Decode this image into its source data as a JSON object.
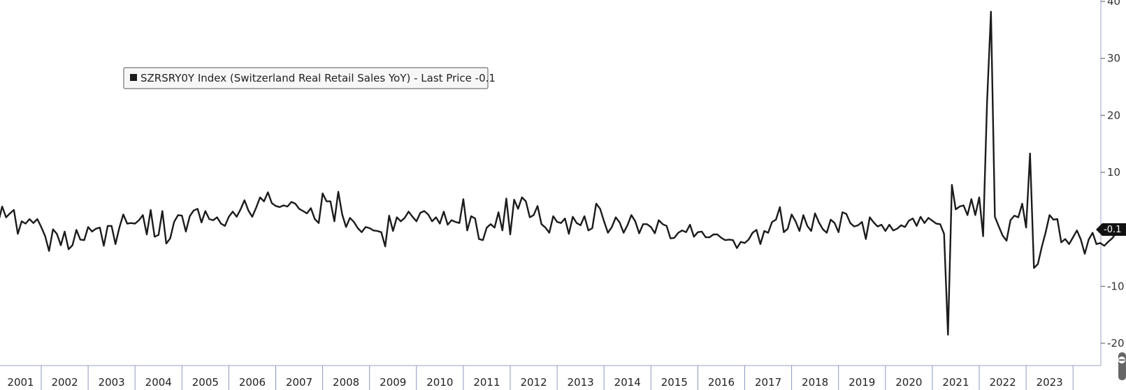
{
  "legend": {
    "text": "SZRSRY0Y Index (Switzerland Real Retail Sales YoY) - Last Price -0.1"
  },
  "last_price_label": "-0.1",
  "colors": {
    "series": "#1b1b1b",
    "axis": "#9aa0c0",
    "tag": "#111111"
  },
  "chart_data": {
    "type": "line",
    "title": "",
    "xlabel": "",
    "ylabel": "",
    "y_axis_position": "right",
    "ylim": [
      -23,
      40
    ],
    "y_ticks": [
      -20,
      -10,
      10,
      20,
      30,
      40
    ],
    "x_tick_labels": [
      "2001",
      "2002",
      "2003",
      "2004",
      "2005",
      "2006",
      "2007",
      "2008",
      "2009",
      "2010",
      "2011",
      "2012",
      "2013",
      "2014",
      "2015",
      "2016",
      "2017",
      "2018",
      "2019",
      "2020",
      "2021",
      "2022",
      "2023"
    ],
    "legend_position": "top-left",
    "grid": false,
    "series": [
      {
        "name": "SZRSRY0Y Index (Switzerland Real Retail Sales YoY)",
        "start": "2000-10",
        "frequency": "monthly",
        "values": [
          3.4,
          3.2,
          3.8,
          0.5,
          1.2,
          4.0,
          2.1,
          2.8,
          3.4,
          -0.8,
          1.4,
          1.0,
          1.8,
          1.1,
          1.8,
          0.4,
          -1.2,
          -3.8,
          0.0,
          -0.8,
          -2.8,
          -0.4,
          -3.5,
          -2.8,
          -0.1,
          -1.8,
          -1.9,
          0.4,
          -0.4,
          0.1,
          0.3,
          -2.9,
          0.6,
          0.6,
          -2.6,
          0.3,
          2.6,
          1.0,
          1.1,
          1.0,
          1.6,
          2.5,
          -0.9,
          3.4,
          -1.3,
          -1.0,
          3.2,
          -2.5,
          -1.6,
          1.3,
          2.5,
          2.4,
          -0.4,
          2.3,
          3.3,
          3.6,
          1.2,
          3.2,
          1.8,
          1.6,
          2.1,
          1.0,
          0.6,
          2.2,
          3.1,
          2.2,
          3.5,
          5.1,
          3.3,
          2.2,
          3.8,
          5.6,
          4.9,
          6.5,
          4.6,
          4.1,
          3.9,
          4.2,
          4.0,
          4.8,
          4.5,
          3.6,
          3.2,
          2.8,
          3.7,
          1.8,
          1.1,
          6.3,
          4.9,
          4.9,
          1.4,
          6.6,
          2.6,
          0.4,
          2.0,
          1.3,
          0.2,
          -0.5,
          0.4,
          0.2,
          -0.2,
          -0.3,
          -0.5,
          -3.0,
          2.4,
          -0.3,
          2.1,
          1.4,
          2.0,
          3.1,
          2.2,
          1.4,
          2.9,
          3.2,
          2.6,
          1.4,
          2.1,
          1.0,
          3.1,
          0.8,
          1.6,
          1.3,
          1.1,
          5.3,
          -0.2,
          2.3,
          1.9,
          -1.7,
          -1.9,
          0.3,
          0.9,
          0.3,
          3.0,
          -0.2,
          5.4,
          -0.9,
          5.2,
          3.6,
          5.6,
          4.9,
          2.1,
          2.5,
          4.1,
          0.9,
          0.3,
          -0.6,
          2.3,
          1.3,
          1.1,
          1.9,
          -0.8,
          2.2,
          1.1,
          0.7,
          2.3,
          -0.2,
          0.2,
          4.5,
          3.6,
          1.4,
          -0.6,
          0.4,
          2.1,
          1.2,
          -0.6,
          0.7,
          2.5,
          1.4,
          -0.7,
          0.9,
          0.9,
          0.4,
          -0.7,
          1.6,
          0.9,
          0.6,
          -1.6,
          -1.5,
          -0.6,
          -0.2,
          -0.5,
          0.8,
          -1.3,
          -0.5,
          -0.4,
          -1.4,
          -1.4,
          -0.9,
          -0.9,
          -1.5,
          -1.9,
          -1.8,
          -1.9,
          -3.3,
          -2.2,
          -2.4,
          -1.8,
          -0.6,
          -0.1,
          -2.6,
          -0.3,
          -0.6,
          1.3,
          1.7,
          3.9,
          -0.5,
          0.1,
          2.6,
          1.4,
          -0.3,
          2.5,
          0.6,
          -0.3,
          2.8,
          1.2,
          0.0,
          -0.6,
          1.7,
          1.1,
          -0.5,
          3.0,
          2.7,
          1.1,
          0.5,
          0.7,
          1.3,
          -1.7,
          2.1,
          1.2,
          0.5,
          0.8,
          -0.3,
          0.8,
          -0.2,
          0.1,
          0.7,
          0.4,
          1.5,
          1.9,
          0.6,
          2.2,
          1.1,
          2.0,
          1.5,
          1.0,
          0.9,
          -0.8,
          -18.5,
          7.8,
          3.5,
          4.0,
          4.2,
          2.5,
          5.3,
          2.5,
          5.6,
          -1.2,
          22.3,
          38.2,
          2.2,
          0.5,
          -1.1,
          -2.0,
          1.6,
          2.4,
          2.1,
          4.5,
          0.3,
          13.3,
          -6.8,
          -6.1,
          -3.1,
          -0.5,
          2.5,
          1.7,
          1.8,
          -2.3,
          -1.7,
          -2.6,
          -1.4,
          -0.2,
          -1.8,
          -4.3,
          -1.8,
          -0.6,
          -2.6,
          -2.4,
          -2.9,
          -2.2,
          -1.6,
          -0.7,
          -0.1,
          0.0,
          -0.1,
          -0.1
        ]
      }
    ]
  }
}
